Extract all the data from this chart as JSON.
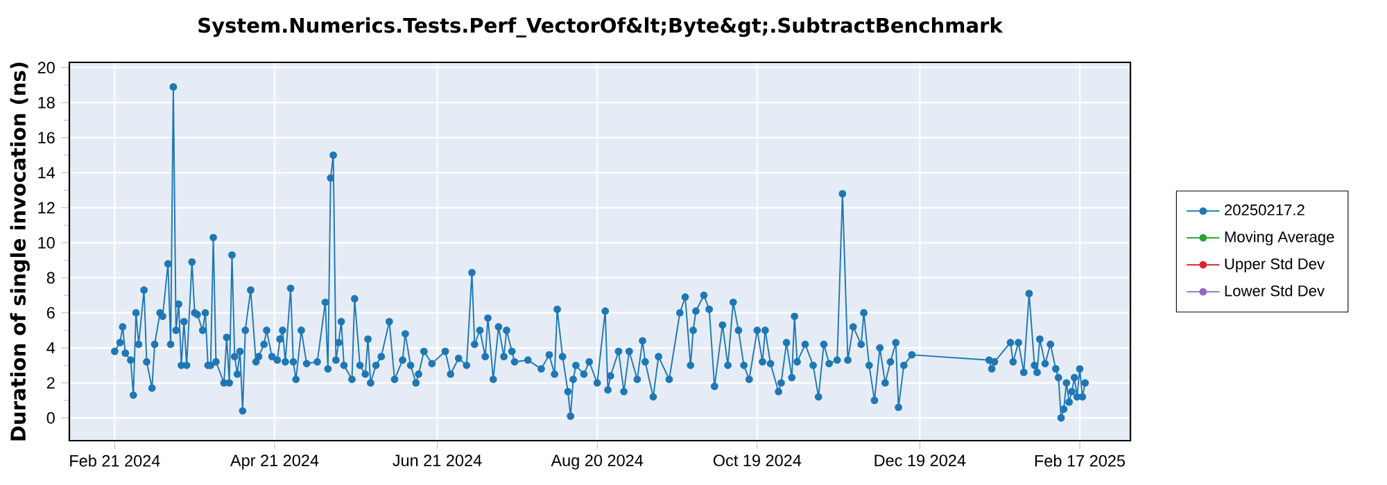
{
  "chart_data": {
    "type": "line",
    "title": "System.Numerics.Tests.Perf_VectorOf&lt;Byte&gt;.SubtractBenchmark",
    "ylabel": "Duration of single invocation (ns)",
    "xlim": [
      "2024-02-04",
      "2025-03-08"
    ],
    "xticks": [
      {
        "value": "2024-02-21",
        "label": "Feb 21 2024"
      },
      {
        "value": "2024-04-21",
        "label": "Apr 21 2024"
      },
      {
        "value": "2024-06-21",
        "label": "Jun 21 2024"
      },
      {
        "value": "2024-08-20",
        "label": "Aug 20 2024"
      },
      {
        "value": "2024-10-19",
        "label": "Oct 19 2024"
      },
      {
        "value": "2024-12-19",
        "label": "Dec 19 2024"
      },
      {
        "value": "2025-02-17",
        "label": "Feb 17 2025"
      }
    ],
    "ylim": [
      -1.3,
      20.3
    ],
    "yticks": [
      0,
      2,
      4,
      6,
      8,
      10,
      12,
      14,
      16,
      18,
      20
    ],
    "grid": true,
    "legend": "right",
    "marker": "circle",
    "series": [
      {
        "name": "20250217.2",
        "color": "#1f77b4",
        "x": [
          "2024-02-21",
          "2024-02-23",
          "2024-02-24",
          "2024-02-25",
          "2024-02-27",
          "2024-02-28",
          "2024-02-29",
          "2024-03-01",
          "2024-03-03",
          "2024-03-04",
          "2024-03-06",
          "2024-03-07",
          "2024-03-09",
          "2024-03-10",
          "2024-03-12",
          "2024-03-13",
          "2024-03-14",
          "2024-03-15",
          "2024-03-16",
          "2024-03-17",
          "2024-03-18",
          "2024-03-19",
          "2024-03-21",
          "2024-03-22",
          "2024-03-23",
          "2024-03-25",
          "2024-03-26",
          "2024-03-27",
          "2024-03-28",
          "2024-03-29",
          "2024-03-30",
          "2024-04-02",
          "2024-04-03",
          "2024-04-04",
          "2024-04-05",
          "2024-04-06",
          "2024-04-07",
          "2024-04-08",
          "2024-04-09",
          "2024-04-10",
          "2024-04-12",
          "2024-04-14",
          "2024-04-15",
          "2024-04-17",
          "2024-04-18",
          "2024-04-20",
          "2024-04-22",
          "2024-04-23",
          "2024-04-24",
          "2024-04-25",
          "2024-04-27",
          "2024-04-28",
          "2024-04-29",
          "2024-05-01",
          "2024-05-03",
          "2024-05-07",
          "2024-05-10",
          "2024-05-11",
          "2024-05-12",
          "2024-05-13",
          "2024-05-14",
          "2024-05-15",
          "2024-05-16",
          "2024-05-17",
          "2024-05-20",
          "2024-05-21",
          "2024-05-23",
          "2024-05-25",
          "2024-05-26",
          "2024-05-27",
          "2024-05-29",
          "2024-05-31",
          "2024-06-03",
          "2024-06-05",
          "2024-06-08",
          "2024-06-09",
          "2024-06-11",
          "2024-06-13",
          "2024-06-14",
          "2024-06-16",
          "2024-06-19",
          "2024-06-24",
          "2024-06-26",
          "2024-06-29",
          "2024-07-02",
          "2024-07-04",
          "2024-07-05",
          "2024-07-07",
          "2024-07-09",
          "2024-07-10",
          "2024-07-12",
          "2024-07-14",
          "2024-07-16",
          "2024-07-17",
          "2024-07-19",
          "2024-07-20",
          "2024-07-25",
          "2024-07-30",
          "2024-08-02",
          "2024-08-04",
          "2024-08-05",
          "2024-08-07",
          "2024-08-09",
          "2024-08-10",
          "2024-08-11",
          "2024-08-12",
          "2024-08-15",
          "2024-08-17",
          "2024-08-20",
          "2024-08-23",
          "2024-08-24",
          "2024-08-25",
          "2024-08-28",
          "2024-08-30",
          "2024-09-01",
          "2024-09-04",
          "2024-09-06",
          "2024-09-07",
          "2024-09-10",
          "2024-09-12",
          "2024-09-16",
          "2024-09-20",
          "2024-09-22",
          "2024-09-24",
          "2024-09-25",
          "2024-09-26",
          "2024-09-29",
          "2024-10-01",
          "2024-10-03",
          "2024-10-06",
          "2024-10-08",
          "2024-10-10",
          "2024-10-12",
          "2024-10-14",
          "2024-10-16",
          "2024-10-19",
          "2024-10-21",
          "2024-10-22",
          "2024-10-24",
          "2024-10-27",
          "2024-10-28",
          "2024-10-30",
          "2024-11-01",
          "2024-11-02",
          "2024-11-03",
          "2024-11-06",
          "2024-11-09",
          "2024-11-11",
          "2024-11-13",
          "2024-11-15",
          "2024-11-18",
          "2024-11-20",
          "2024-11-22",
          "2024-11-24",
          "2024-11-27",
          "2024-11-28",
          "2024-11-30",
          "2024-12-02",
          "2024-12-04",
          "2024-12-06",
          "2024-12-08",
          "2024-12-10",
          "2024-12-11",
          "2024-12-13",
          "2024-12-16",
          "2025-01-14",
          "2025-01-15",
          "2025-01-16",
          "2025-01-22",
          "2025-01-23",
          "2025-01-25",
          "2025-01-27",
          "2025-01-29",
          "2025-01-31",
          "2025-02-01",
          "2025-02-02",
          "2025-02-04",
          "2025-02-06",
          "2025-02-08",
          "2025-02-09",
          "2025-02-10",
          "2025-02-11",
          "2025-02-12",
          "2025-02-13",
          "2025-02-14",
          "2025-02-15",
          "2025-02-16",
          "2025-02-17",
          "2025-02-18",
          "2025-02-19"
        ],
        "values": [
          3.8,
          4.3,
          5.2,
          3.7,
          3.3,
          1.3,
          6.0,
          4.2,
          7.3,
          3.2,
          1.7,
          4.2,
          6.0,
          5.8,
          8.8,
          4.2,
          18.9,
          5.0,
          6.5,
          3.0,
          5.5,
          3.0,
          8.9,
          6.0,
          5.9,
          5.0,
          6.0,
          3.0,
          3.0,
          10.3,
          3.2,
          2.0,
          4.6,
          2.0,
          9.3,
          3.5,
          2.5,
          3.8,
          0.4,
          5.0,
          7.3,
          3.2,
          3.5,
          4.2,
          5.0,
          3.5,
          3.3,
          4.5,
          5.0,
          3.2,
          7.4,
          3.2,
          2.2,
          5.0,
          3.1,
          3.2,
          6.6,
          2.8,
          13.7,
          15.0,
          3.3,
          4.3,
          5.5,
          3.0,
          2.2,
          6.8,
          3.0,
          2.5,
          4.5,
          2.0,
          3.0,
          3.5,
          5.5,
          2.2,
          3.3,
          4.8,
          3.0,
          2.0,
          2.5,
          3.8,
          3.1,
          3.8,
          2.5,
          3.4,
          3.0,
          8.3,
          4.2,
          5.0,
          3.5,
          5.7,
          2.2,
          5.2,
          3.5,
          5.0,
          3.8,
          3.2,
          3.3,
          2.8,
          3.6,
          2.5,
          6.2,
          3.5,
          1.5,
          0.1,
          2.2,
          3.0,
          2.5,
          3.2,
          2.0,
          6.1,
          1.6,
          2.4,
          3.8,
          1.5,
          3.8,
          2.2,
          4.4,
          3.2,
          1.2,
          3.5,
          2.2,
          6.0,
          6.9,
          3.0,
          5.0,
          6.1,
          7.0,
          6.2,
          1.8,
          5.3,
          3.0,
          6.6,
          5.0,
          3.0,
          2.2,
          5.0,
          3.2,
          5.0,
          3.1,
          1.5,
          2.0,
          4.3,
          2.3,
          5.8,
          3.2,
          4.2,
          3.0,
          1.2,
          4.2,
          3.1,
          3.3,
          12.8,
          3.3,
          5.2,
          4.2,
          6.0,
          3.0,
          1.0,
          4.0,
          2.0,
          3.2,
          4.3,
          0.6,
          3.0,
          3.6,
          3.3,
          2.8,
          3.2,
          4.3,
          3.2,
          4.3,
          2.6,
          7.1,
          3.0,
          2.6,
          4.5,
          3.1,
          4.2,
          2.8,
          2.3,
          0.0,
          0.5,
          2.0,
          0.9,
          1.5,
          2.3,
          1.2,
          2.8,
          1.2,
          2.0
        ]
      },
      {
        "name": "Moving Average",
        "color": "#2ca02c"
      },
      {
        "name": "Upper Std Dev",
        "color": "#d62728"
      },
      {
        "name": "Lower Std Dev",
        "color": "#9467bd"
      }
    ]
  }
}
